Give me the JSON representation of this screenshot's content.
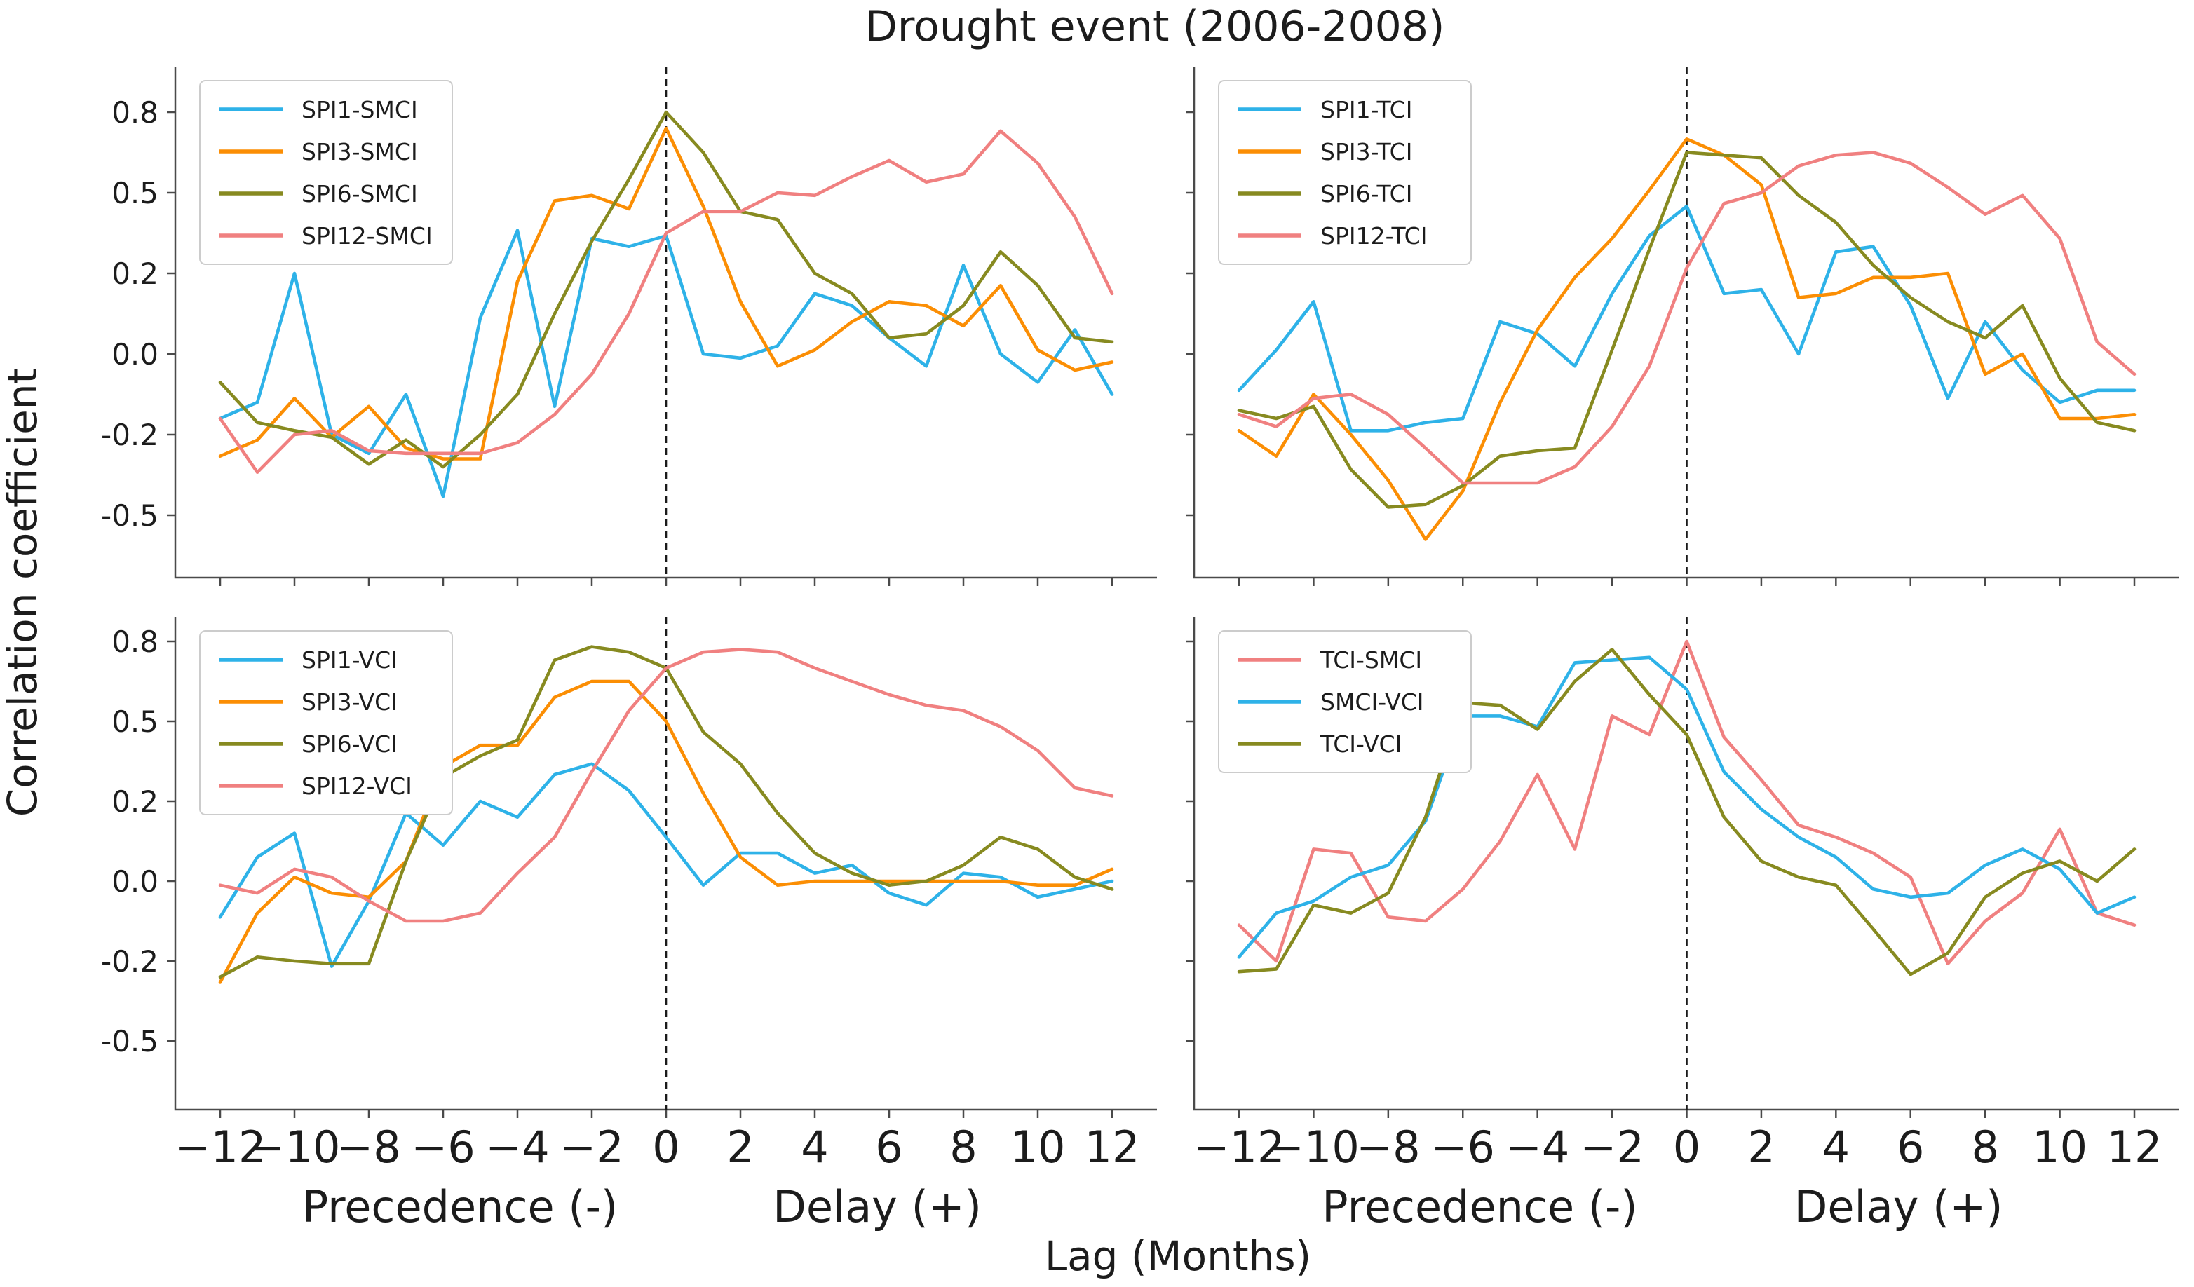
{
  "title": "Drought event (2006-2008)",
  "labels": {
    "ylabel": "Correlation coefficient",
    "xlabel": "Lag (Months)",
    "precedence": "Precedence (-)",
    "delay": "Delay (+)"
  },
  "colors": {
    "spi1": "#2eb2e8",
    "spi3": "#fb8e04",
    "spi6": "#878a20",
    "spi12": "#f08080",
    "dashed_line": "#1a1a1a",
    "axis": "#4a4a4a",
    "text": "#1c1c1c",
    "legend_border": "#cccccc"
  },
  "axes": {
    "x_tick_labels": [
      "−12",
      "−10",
      "−8",
      "−6",
      "−4",
      "−2",
      "0",
      "2",
      "4",
      "6",
      "8",
      "10",
      "12"
    ],
    "x_tick_values": [
      -12,
      -10,
      -8,
      -6,
      -4,
      -2,
      0,
      2,
      4,
      6,
      8,
      10,
      12
    ],
    "y_tick_labels": [
      "0.8",
      "0.5",
      "0.2",
      "0.0",
      "-0.2",
      "-0.5"
    ],
    "y_tick_values": [
      0.8,
      0.5,
      0.2,
      0.0,
      -0.2,
      -0.5
    ],
    "x_range": [
      -12,
      12
    ],
    "zero_line_x": 0,
    "grid": false,
    "legend_position": "upper-left"
  },
  "chart_data": [
    {
      "id": "top-left",
      "type": "line",
      "x": [
        -12,
        -11,
        -10,
        -9,
        -8,
        -7,
        -6,
        -5,
        -4,
        -3,
        -2,
        -1,
        0,
        1,
        2,
        3,
        4,
        5,
        6,
        7,
        8,
        9,
        10,
        11,
        12
      ],
      "series": [
        {
          "name": "SPI1-SMCI",
          "color_key": "spi1",
          "values": [
            -0.16,
            -0.12,
            0.2,
            -0.2,
            -0.27,
            -0.1,
            -0.43,
            0.09,
            0.36,
            -0.13,
            0.33,
            0.3,
            0.34,
            0.0,
            -0.01,
            0.02,
            0.15,
            0.12,
            0.04,
            -0.03,
            0.23,
            0.0,
            -0.07,
            0.06,
            -0.1
          ]
        },
        {
          "name": "SPI3-SMCI",
          "color_key": "spi3",
          "values": [
            -0.28,
            -0.22,
            -0.11,
            -0.21,
            -0.13,
            -0.25,
            -0.29,
            -0.29,
            0.18,
            0.47,
            0.49,
            0.44,
            0.74,
            0.45,
            0.13,
            -0.03,
            0.01,
            0.08,
            0.13,
            0.12,
            0.07,
            0.17,
            0.01,
            -0.04,
            -0.02
          ]
        },
        {
          "name": "SPI6-SMCI",
          "color_key": "spi6",
          "values": [
            -0.07,
            -0.17,
            -0.19,
            -0.21,
            -0.31,
            -0.22,
            -0.32,
            -0.2,
            -0.1,
            0.1,
            0.32,
            0.55,
            0.8,
            0.65,
            0.43,
            0.4,
            0.2,
            0.15,
            0.04,
            0.05,
            0.12,
            0.28,
            0.17,
            0.04,
            0.03
          ]
        },
        {
          "name": "SPI12-SMCI",
          "color_key": "spi12",
          "values": [
            -0.16,
            -0.34,
            -0.2,
            -0.19,
            -0.26,
            -0.27,
            -0.27,
            -0.27,
            -0.23,
            -0.15,
            -0.05,
            0.1,
            0.35,
            0.43,
            0.43,
            0.5,
            0.49,
            0.56,
            0.62,
            0.54,
            0.57,
            0.73,
            0.61,
            0.41,
            0.15
          ]
        }
      ]
    },
    {
      "id": "top-right",
      "type": "line",
      "x": [
        -12,
        -11,
        -10,
        -9,
        -8,
        -7,
        -6,
        -5,
        -4,
        -3,
        -2,
        -1,
        0,
        1,
        2,
        3,
        4,
        5,
        6,
        7,
        8,
        9,
        10,
        11,
        12
      ],
      "series": [
        {
          "name": "SPI1-TCI",
          "color_key": "spi1",
          "values": [
            -0.09,
            0.01,
            0.13,
            -0.19,
            -0.19,
            -0.17,
            -0.16,
            0.08,
            0.05,
            -0.03,
            0.15,
            0.34,
            0.45,
            0.15,
            0.16,
            0.0,
            0.28,
            0.3,
            0.12,
            -0.11,
            0.08,
            -0.04,
            -0.12,
            -0.09,
            -0.09
          ]
        },
        {
          "name": "SPI3-TCI",
          "color_key": "spi3",
          "values": [
            -0.19,
            -0.28,
            -0.1,
            -0.2,
            -0.37,
            -0.59,
            -0.41,
            -0.12,
            0.06,
            0.19,
            0.33,
            0.51,
            0.7,
            0.64,
            0.53,
            0.14,
            0.15,
            0.19,
            0.19,
            0.2,
            -0.05,
            0.0,
            -0.16,
            -0.16,
            -0.15
          ]
        },
        {
          "name": "SPI6-TCI",
          "color_key": "spi6",
          "values": [
            -0.14,
            -0.16,
            -0.13,
            -0.33,
            -0.47,
            -0.46,
            -0.39,
            -0.28,
            -0.26,
            -0.25,
            0.01,
            0.29,
            0.65,
            0.64,
            0.63,
            0.49,
            0.39,
            0.23,
            0.14,
            0.08,
            0.04,
            0.12,
            -0.06,
            -0.17,
            -0.19
          ]
        },
        {
          "name": "SPI12-TCI",
          "color_key": "spi12",
          "values": [
            -0.15,
            -0.18,
            -0.11,
            -0.1,
            -0.15,
            -0.25,
            -0.38,
            -0.38,
            -0.38,
            -0.32,
            -0.18,
            -0.03,
            0.22,
            0.46,
            0.5,
            0.6,
            0.64,
            0.65,
            0.61,
            0.52,
            0.42,
            0.49,
            0.33,
            0.03,
            -0.05
          ]
        }
      ]
    },
    {
      "id": "bottom-left",
      "type": "line",
      "x": [
        -12,
        -11,
        -10,
        -9,
        -8,
        -7,
        -6,
        -5,
        -4,
        -3,
        -2,
        -1,
        0,
        1,
        2,
        3,
        4,
        5,
        6,
        7,
        8,
        9,
        10,
        11,
        12
      ],
      "series": [
        {
          "name": "SPI1-VCI",
          "color_key": "spi1",
          "values": [
            -0.09,
            0.06,
            0.12,
            -0.22,
            -0.05,
            0.17,
            0.09,
            0.2,
            0.16,
            0.3,
            0.34,
            0.24,
            0.11,
            -0.01,
            0.07,
            0.07,
            0.02,
            0.04,
            -0.03,
            -0.06,
            0.02,
            0.01,
            -0.04,
            -0.02,
            0.0
          ]
        },
        {
          "name": "SPI3-VCI",
          "color_key": "spi3",
          "values": [
            -0.28,
            -0.08,
            0.01,
            -0.03,
            -0.04,
            0.05,
            0.33,
            0.41,
            0.41,
            0.59,
            0.65,
            0.65,
            0.5,
            0.23,
            0.06,
            -0.01,
            0.0,
            0.0,
            0.0,
            0.0,
            0.0,
            0.0,
            -0.01,
            -0.01,
            0.03
          ]
        },
        {
          "name": "SPI6-VCI",
          "color_key": "spi6",
          "values": [
            -0.26,
            -0.19,
            -0.2,
            -0.21,
            -0.21,
            0.05,
            0.29,
            0.37,
            0.43,
            0.73,
            0.78,
            0.76,
            0.7,
            0.46,
            0.34,
            0.17,
            0.07,
            0.02,
            -0.01,
            0.0,
            0.04,
            0.11,
            0.08,
            0.01,
            -0.02
          ]
        },
        {
          "name": "SPI12-VCI",
          "color_key": "spi12",
          "values": [
            -0.01,
            -0.03,
            0.03,
            0.01,
            -0.05,
            -0.1,
            -0.1,
            -0.08,
            0.02,
            0.11,
            0.31,
            0.54,
            0.7,
            0.76,
            0.77,
            0.76,
            0.7,
            0.65,
            0.6,
            0.56,
            0.54,
            0.48,
            0.39,
            0.25,
            0.22
          ]
        }
      ]
    },
    {
      "id": "bottom-right",
      "type": "line",
      "x": [
        -12,
        -11,
        -10,
        -9,
        -8,
        -7,
        -6,
        -5,
        -4,
        -3,
        -2,
        -1,
        0,
        1,
        2,
        3,
        4,
        5,
        6,
        7,
        8,
        9,
        10,
        11,
        12
      ],
      "series": [
        {
          "name": "TCI-SMCI",
          "color_key": "spi12",
          "values": [
            -0.11,
            -0.2,
            0.08,
            0.07,
            -0.09,
            -0.1,
            -0.02,
            0.1,
            0.3,
            0.08,
            0.52,
            0.45,
            0.8,
            0.44,
            0.28,
            0.14,
            0.11,
            0.07,
            0.01,
            -0.21,
            -0.1,
            -0.03,
            0.13,
            -0.08,
            -0.11
          ]
        },
        {
          "name": "SMCI-VCI",
          "color_key": "spi1",
          "values": [
            -0.19,
            -0.08,
            -0.05,
            0.01,
            0.04,
            0.15,
            0.52,
            0.52,
            0.48,
            0.72,
            0.73,
            0.74,
            0.62,
            0.31,
            0.18,
            0.11,
            0.06,
            -0.02,
            -0.04,
            -0.03,
            0.04,
            0.08,
            0.03,
            -0.08,
            -0.04
          ]
        },
        {
          "name": "TCI-VCI",
          "color_key": "spi6",
          "values": [
            -0.24,
            -0.23,
            -0.06,
            -0.08,
            -0.03,
            0.16,
            0.57,
            0.56,
            0.47,
            0.65,
            0.77,
            0.6,
            0.45,
            0.16,
            0.05,
            0.01,
            -0.01,
            -0.12,
            -0.25,
            -0.18,
            -0.04,
            0.02,
            0.05,
            0.0,
            0.08
          ]
        }
      ]
    }
  ]
}
